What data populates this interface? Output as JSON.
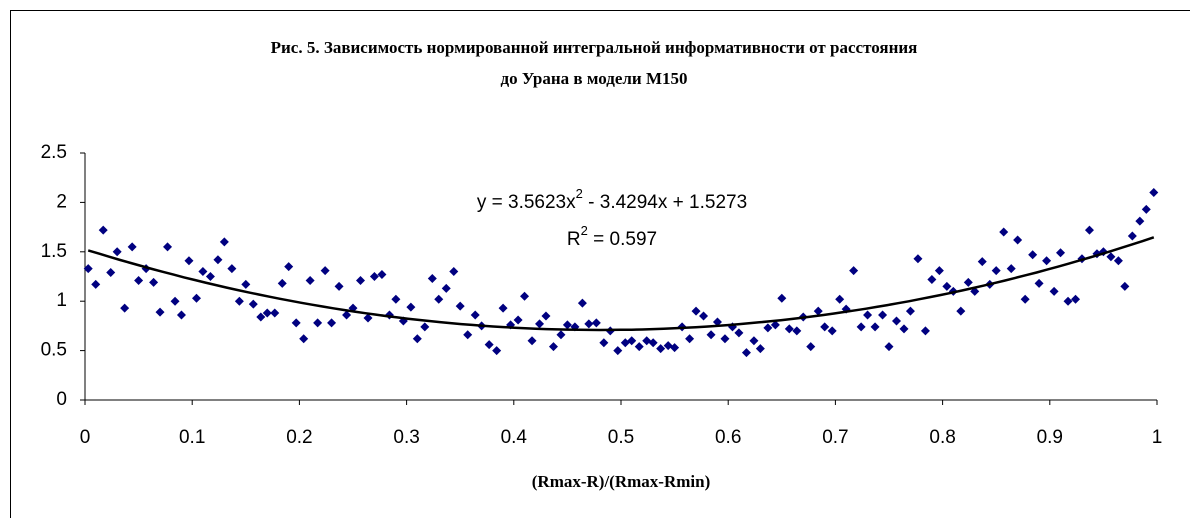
{
  "chart_data": {
    "type": "scatter",
    "title": [
      "Рис. 5. Зависимость нормированной интегральной информативности от расстояния",
      "до Урана в модели М150"
    ],
    "x_label": "(Rmax-R)/(Rmax-Rmin)",
    "equation": [
      "y = 3.5623x",
      "2",
      " - 3.4294x + 1.5273"
    ],
    "r_squared": [
      "R",
      "2",
      " = 0.597"
    ],
    "trendline": {
      "kind": "polynomial",
      "order": 2,
      "color": "#000000"
    },
    "color": "#000080",
    "xlim": [
      0,
      1
    ],
    "xticks": [
      0,
      0.1,
      0.2,
      0.3,
      0.4,
      0.5,
      0.6,
      0.7,
      0.8,
      0.9,
      1
    ],
    "ylim": [
      0,
      2.5
    ],
    "yticks": [
      0,
      0.5,
      1,
      1.5,
      2,
      2.5
    ],
    "x": [
      0.003,
      0.01,
      0.017,
      0.024,
      0.03,
      0.037,
      0.044,
      0.05,
      0.057,
      0.064,
      0.07,
      0.077,
      0.084,
      0.09,
      0.097,
      0.104,
      0.11,
      0.117,
      0.124,
      0.13,
      0.137,
      0.144,
      0.15,
      0.157,
      0.164,
      0.17,
      0.177,
      0.184,
      0.19,
      0.197,
      0.204,
      0.21,
      0.217,
      0.224,
      0.23,
      0.237,
      0.244,
      0.25,
      0.257,
      0.264,
      0.27,
      0.277,
      0.284,
      0.29,
      0.297,
      0.304,
      0.31,
      0.317,
      0.324,
      0.33,
      0.337,
      0.344,
      0.35,
      0.357,
      0.364,
      0.37,
      0.377,
      0.384,
      0.39,
      0.397,
      0.404,
      0.41,
      0.417,
      0.424,
      0.43,
      0.437,
      0.444,
      0.45,
      0.457,
      0.464,
      0.47,
      0.477,
      0.484,
      0.49,
      0.497,
      0.504,
      0.51,
      0.517,
      0.524,
      0.53,
      0.537,
      0.544,
      0.55,
      0.557,
      0.564,
      0.57,
      0.577,
      0.584,
      0.59,
      0.597,
      0.604,
      0.61,
      0.617,
      0.624,
      0.63,
      0.637,
      0.644,
      0.65,
      0.657,
      0.664,
      0.67,
      0.677,
      0.684,
      0.69,
      0.697,
      0.704,
      0.71,
      0.717,
      0.724,
      0.73,
      0.737,
      0.744,
      0.75,
      0.757,
      0.764,
      0.77,
      0.777,
      0.784,
      0.79,
      0.797,
      0.804,
      0.81,
      0.817,
      0.824,
      0.83,
      0.837,
      0.844,
      0.85,
      0.857,
      0.864,
      0.87,
      0.877,
      0.884,
      0.89,
      0.897,
      0.904,
      0.91,
      0.917,
      0.924,
      0.93,
      0.937,
      0.944,
      0.95,
      0.957,
      0.964,
      0.97,
      0.977,
      0.984,
      0.99,
      0.997
    ],
    "y": [
      1.33,
      1.17,
      1.72,
      1.29,
      1.5,
      0.93,
      1.55,
      1.21,
      1.33,
      1.19,
      0.89,
      1.55,
      1.0,
      0.86,
      1.41,
      1.03,
      1.3,
      1.25,
      1.42,
      1.6,
      1.33,
      1.0,
      1.17,
      0.97,
      0.84,
      0.88,
      0.88,
      1.18,
      1.35,
      0.78,
      0.62,
      1.21,
      0.78,
      1.31,
      0.78,
      1.15,
      0.86,
      0.93,
      1.21,
      0.83,
      1.25,
      1.27,
      0.86,
      1.02,
      0.8,
      0.94,
      0.62,
      0.74,
      1.23,
      1.02,
      1.13,
      1.3,
      0.95,
      0.66,
      0.86,
      0.75,
      0.56,
      0.5,
      0.93,
      0.76,
      0.81,
      1.05,
      0.6,
      0.77,
      0.85,
      0.54,
      0.66,
      0.76,
      0.74,
      0.98,
      0.77,
      0.78,
      0.58,
      0.7,
      0.5,
      0.58,
      0.6,
      0.54,
      0.6,
      0.58,
      0.52,
      0.55,
      0.53,
      0.74,
      0.62,
      0.9,
      0.85,
      0.66,
      0.79,
      0.62,
      0.74,
      0.68,
      0.48,
      0.6,
      0.52,
      0.73,
      0.76,
      1.03,
      0.72,
      0.7,
      0.84,
      0.54,
      0.9,
      0.74,
      0.7,
      1.02,
      0.92,
      1.31,
      0.74,
      0.86,
      0.74,
      0.86,
      0.54,
      0.8,
      0.72,
      0.9,
      1.43,
      0.7,
      1.22,
      1.31,
      1.15,
      1.1,
      0.9,
      1.19,
      1.1,
      1.4,
      1.17,
      1.31,
      1.7,
      1.33,
      1.62,
      1.02,
      1.47,
      1.18,
      1.41,
      1.1,
      1.49,
      1.0,
      1.02,
      1.43,
      1.72,
      1.48,
      1.5,
      1.45,
      1.41,
      1.15,
      1.66,
      1.81,
      1.93,
      2.1
    ]
  }
}
